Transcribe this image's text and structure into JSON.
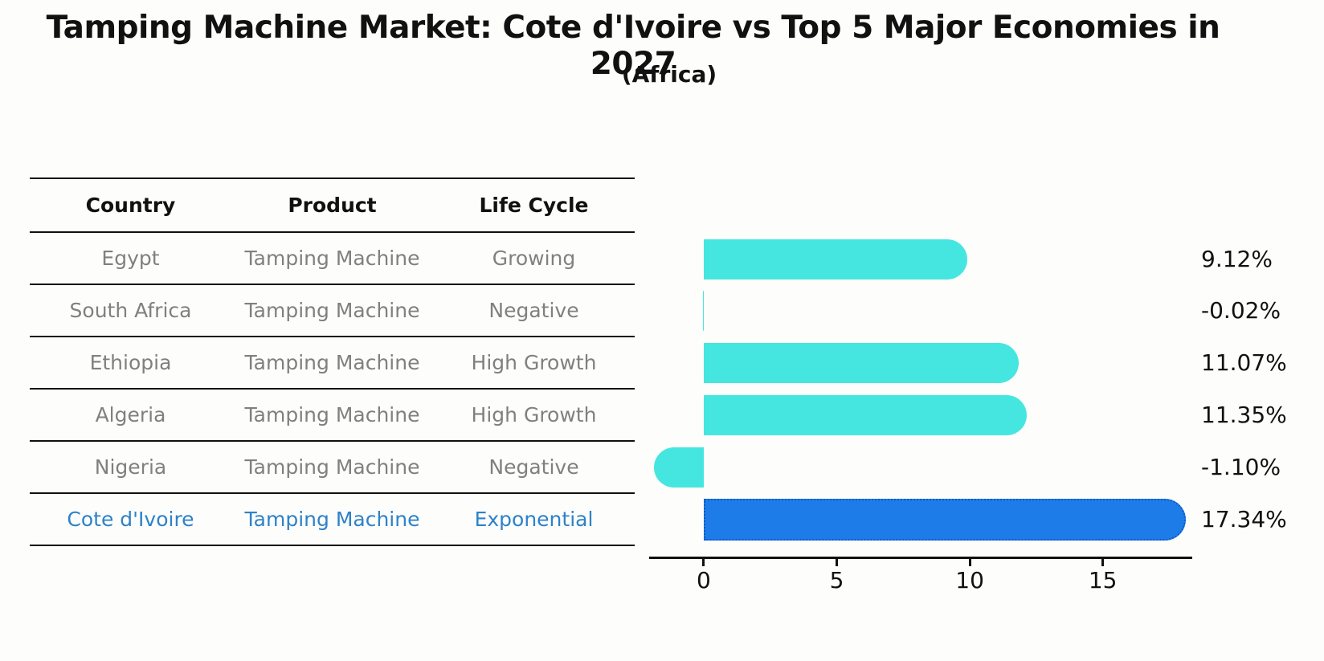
{
  "title": "Tamping Machine Market: Cote d'Ivoire vs Top 5 Major Economies in 2027",
  "subtitle": "(Africa)",
  "table": {
    "headers": [
      "Country",
      "Product",
      "Life Cycle"
    ],
    "rows": [
      {
        "country": "Egypt",
        "product": "Tamping Machine",
        "life_cycle": "Growing"
      },
      {
        "country": "South Africa",
        "product": "Tamping Machine",
        "life_cycle": "Negative"
      },
      {
        "country": "Ethiopia",
        "product": "Tamping Machine",
        "life_cycle": "High Growth"
      },
      {
        "country": "Algeria",
        "product": "Tamping Machine",
        "life_cycle": "High Growth"
      },
      {
        "country": "Nigeria",
        "product": "Tamping Machine",
        "life_cycle": "Negative"
      },
      {
        "country": "Cote d'Ivoire",
        "product": "Tamping Machine",
        "life_cycle": "Exponential"
      }
    ]
  },
  "chart_data": {
    "type": "bar",
    "orientation": "horizontal",
    "title": "Tamping Machine Market: Cote d'Ivoire vs Top 5 Major Economies in 2027 (Africa)",
    "categories": [
      "Egypt",
      "South Africa",
      "Ethiopia",
      "Algeria",
      "Nigeria",
      "Cote d'Ivoire"
    ],
    "values": [
      9.12,
      -0.02,
      11.07,
      11.35,
      -1.1,
      17.34
    ],
    "value_labels": [
      "9.12%",
      "-0.02%",
      "11.07%",
      "11.35%",
      "-1.10%",
      "17.34%"
    ],
    "x_ticks": [
      0,
      5,
      10,
      15
    ],
    "xlim": [
      -2.05,
      18.3
    ],
    "xlabel": "",
    "ylabel": "",
    "grid": false,
    "legend": false,
    "bar_color": "#45E6E0",
    "highlight_index": 5,
    "highlight_color": "#1E7CE8",
    "highlight_border_color": "#1058C8"
  },
  "colors": {
    "row_text": "#808080",
    "highlight_text": "#2E82C8",
    "axis": "#111111"
  }
}
